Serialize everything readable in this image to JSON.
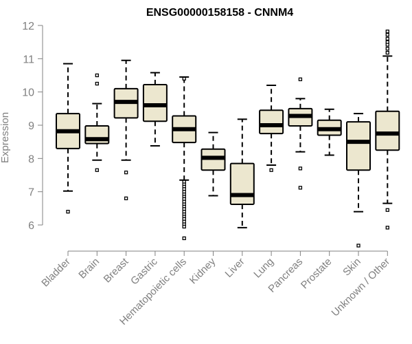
{
  "chart_data": {
    "type": "boxplot",
    "title": "ENSG00000158158 - CNNM4",
    "xlabel": "",
    "ylabel": "Expression",
    "ylim": [
      5.3,
      12.0
    ],
    "yticks": [
      6,
      7,
      8,
      9,
      10,
      11,
      12
    ],
    "grid": false,
    "colors": {
      "box_fill": "#ece7cf",
      "stroke": "#000000",
      "axis": "#808080",
      "tick_text": "#808080",
      "title": "#000000"
    },
    "categories": [
      "Bladder",
      "Brain",
      "Breast",
      "Gastric",
      "Hematopoietic cells",
      "Kidney",
      "Liver",
      "Lung",
      "Pancreas",
      "Prostate",
      "Skin",
      "Unknown / Other"
    ],
    "boxes": [
      {
        "category": "Bladder",
        "whisker_low": 7.02,
        "q1": 8.3,
        "median": 8.82,
        "q3": 9.35,
        "whisker_high": 10.85,
        "outliers": [
          6.4
        ]
      },
      {
        "category": "Brain",
        "whisker_low": 7.95,
        "q1": 8.45,
        "median": 8.58,
        "q3": 8.98,
        "whisker_high": 9.65,
        "outliers": [
          7.65,
          10.25,
          10.5
        ]
      },
      {
        "category": "Breast",
        "whisker_low": 7.95,
        "q1": 9.22,
        "median": 9.7,
        "q3": 10.1,
        "whisker_high": 10.95,
        "outliers": [
          7.58,
          6.8
        ]
      },
      {
        "category": "Gastric",
        "whisker_low": 8.38,
        "q1": 9.12,
        "median": 9.6,
        "q3": 10.22,
        "whisker_high": 10.58,
        "outliers": []
      },
      {
        "category": "Hematopoietic cells",
        "whisker_low": 7.35,
        "q1": 8.48,
        "median": 8.88,
        "q3": 9.28,
        "whisker_high": 10.45,
        "outliers": [
          10.4,
          7.3,
          7.22,
          7.15,
          7.08,
          7.0,
          6.92,
          6.85,
          6.78,
          6.7,
          6.62,
          6.55,
          6.48,
          6.4,
          6.32,
          6.25,
          6.18,
          6.1,
          6.02,
          5.95,
          5.6
        ]
      },
      {
        "category": "Kidney",
        "whisker_low": 6.88,
        "q1": 7.65,
        "median": 8.02,
        "q3": 8.28,
        "whisker_high": 8.78,
        "outliers": []
      },
      {
        "category": "Liver",
        "whisker_low": 5.92,
        "q1": 6.62,
        "median": 6.9,
        "q3": 7.85,
        "whisker_high": 9.18,
        "outliers": []
      },
      {
        "category": "Lung",
        "whisker_low": 7.8,
        "q1": 8.75,
        "median": 9.0,
        "q3": 9.45,
        "whisker_high": 10.2,
        "outliers": [
          7.65
        ]
      },
      {
        "category": "Pancreas",
        "whisker_low": 8.2,
        "q1": 8.98,
        "median": 9.28,
        "q3": 9.5,
        "whisker_high": 9.8,
        "outliers": [
          10.38,
          7.7,
          7.12
        ]
      },
      {
        "category": "Prostate",
        "whisker_low": 8.1,
        "q1": 8.7,
        "median": 8.88,
        "q3": 9.15,
        "whisker_high": 9.48,
        "outliers": []
      },
      {
        "category": "Skin",
        "whisker_low": 6.4,
        "q1": 7.65,
        "median": 8.5,
        "q3": 9.1,
        "whisker_high": 9.35,
        "outliers": [
          5.38
        ]
      },
      {
        "category": "Unknown / Other",
        "whisker_low": 6.65,
        "q1": 8.25,
        "median": 8.75,
        "q3": 9.42,
        "whisker_high": 11.08,
        "outliers": [
          11.82,
          11.72,
          11.6,
          11.5,
          11.42,
          11.3,
          11.18,
          6.45,
          5.92
        ]
      }
    ]
  }
}
